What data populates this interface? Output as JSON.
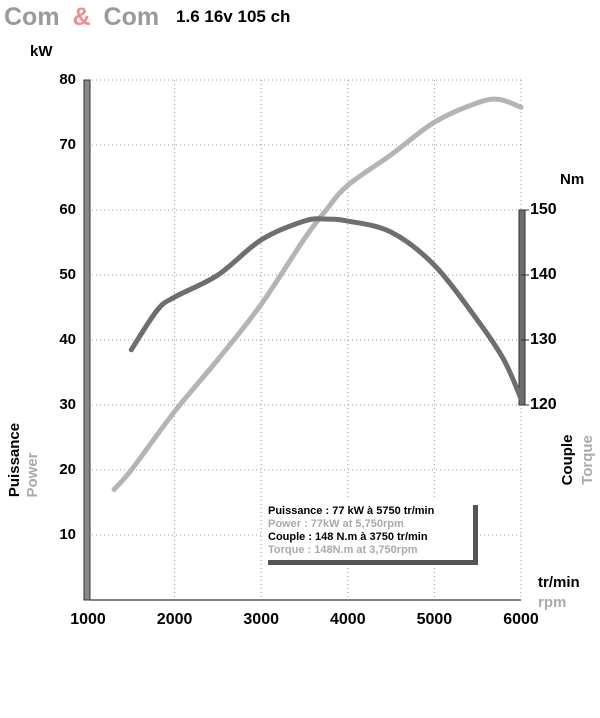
{
  "chart_data": {
    "type": "line",
    "title_parts": [
      "Com",
      "&",
      "Com",
      "1.6 16v 105 ch"
    ],
    "y_unit": "kW",
    "y2_unit": "Nm",
    "x_unit": [
      "tr/min",
      "rpm"
    ],
    "y_label": [
      "Puissance",
      "Power"
    ],
    "y2_label": [
      "Couple",
      "Torque"
    ],
    "annotation": [
      "Puissance : 77 kW à 5750 tr/min",
      "Power : 77kW at 5,750rpm",
      "Couple : 148 N.m à 3750 tr/min",
      "Torque : 148N.m at 3,750rpm"
    ],
    "xlim": [
      1000,
      6000
    ],
    "xticks": [
      1000,
      2000,
      3000,
      4000,
      5000,
      6000
    ],
    "ylim": [
      0,
      80
    ],
    "yticks": [
      10,
      20,
      30,
      40,
      50,
      60,
      70,
      80
    ],
    "y2lim": [
      90,
      170
    ],
    "y2ticks": [
      120,
      130,
      140,
      150
    ],
    "grid": true,
    "series": [
      {
        "name": "Power",
        "color": "#b4b4b8",
        "axis": "y",
        "x": [
          1300,
          1500,
          2000,
          2500,
          3000,
          3500,
          3750,
          4000,
          4500,
          5000,
          5500,
          5750,
          6000
        ],
        "values": [
          17,
          20,
          29,
          37,
          45.5,
          55.6,
          60,
          63.8,
          68.5,
          73.5,
          76.5,
          77,
          75.8
        ]
      },
      {
        "name": "Torque",
        "color": "#6e6e70",
        "axis": "y2",
        "x": [
          1500,
          1800,
          2000,
          2500,
          3000,
          3500,
          3750,
          4000,
          4500,
          5000,
          5500,
          5800,
          6000
        ],
        "values": [
          128.5,
          134.6,
          136.6,
          140,
          145.4,
          148.3,
          148.6,
          148.3,
          146.6,
          141.5,
          133,
          127,
          121
        ]
      }
    ]
  }
}
